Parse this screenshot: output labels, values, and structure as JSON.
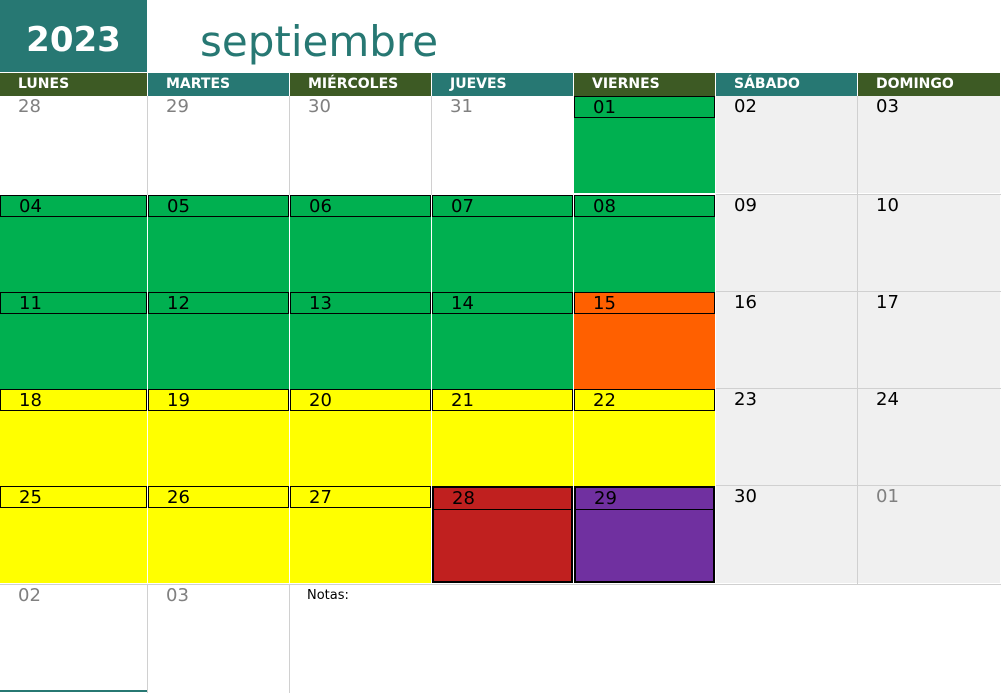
{
  "header": {
    "year": "2023",
    "month": "septiembre"
  },
  "colors": {
    "teal": "#277873",
    "olive": "#3d5a24",
    "green": "#00b050",
    "orange": "#ff6000",
    "yellow": "#ffff00",
    "red": "#c0201f",
    "purple": "#7030a0",
    "weekend": "#f0f0f0",
    "muted_text": "#808080"
  },
  "weekdays": [
    "LUNES",
    "MARTES",
    "MIÉRCOLES",
    "JUEVES",
    "VIERNES",
    "SÁBADO",
    "DOMINGO"
  ],
  "weeks": [
    [
      {
        "day": "28",
        "fill": "none",
        "muted": true
      },
      {
        "day": "29",
        "fill": "none",
        "muted": true
      },
      {
        "day": "30",
        "fill": "none",
        "muted": true
      },
      {
        "day": "31",
        "fill": "none",
        "muted": true
      },
      {
        "day": "01",
        "fill": "green",
        "muted": false
      },
      {
        "day": "02",
        "fill": "weekend",
        "muted": false
      },
      {
        "day": "03",
        "fill": "weekend",
        "muted": false
      }
    ],
    [
      {
        "day": "04",
        "fill": "green",
        "muted": false
      },
      {
        "day": "05",
        "fill": "green",
        "muted": false
      },
      {
        "day": "06",
        "fill": "green",
        "muted": false
      },
      {
        "day": "07",
        "fill": "green",
        "muted": false
      },
      {
        "day": "08",
        "fill": "green",
        "muted": false
      },
      {
        "day": "09",
        "fill": "weekend",
        "muted": false
      },
      {
        "day": "10",
        "fill": "weekend",
        "muted": false
      }
    ],
    [
      {
        "day": "11",
        "fill": "green",
        "muted": false
      },
      {
        "day": "12",
        "fill": "green",
        "muted": false
      },
      {
        "day": "13",
        "fill": "green",
        "muted": false
      },
      {
        "day": "14",
        "fill": "green",
        "muted": false
      },
      {
        "day": "15",
        "fill": "orange",
        "muted": false
      },
      {
        "day": "16",
        "fill": "weekend",
        "muted": false
      },
      {
        "day": "17",
        "fill": "weekend",
        "muted": false
      }
    ],
    [
      {
        "day": "18",
        "fill": "yellow",
        "muted": false
      },
      {
        "day": "19",
        "fill": "yellow",
        "muted": false
      },
      {
        "day": "20",
        "fill": "yellow",
        "muted": false
      },
      {
        "day": "21",
        "fill": "yellow",
        "muted": false
      },
      {
        "day": "22",
        "fill": "yellow",
        "muted": false
      },
      {
        "day": "23",
        "fill": "weekend",
        "muted": false
      },
      {
        "day": "24",
        "fill": "weekend",
        "muted": false
      }
    ],
    [
      {
        "day": "25",
        "fill": "yellow",
        "muted": false
      },
      {
        "day": "26",
        "fill": "yellow",
        "muted": false
      },
      {
        "day": "27",
        "fill": "yellow",
        "muted": false
      },
      {
        "day": "28",
        "fill": "red",
        "muted": false
      },
      {
        "day": "29",
        "fill": "purple",
        "muted": false
      },
      {
        "day": "30",
        "fill": "weekend",
        "muted": false
      },
      {
        "day": "01",
        "fill": "weekend",
        "muted": true
      }
    ],
    [
      {
        "day": "02",
        "fill": "none",
        "muted": true
      },
      {
        "day": "03",
        "fill": "none",
        "muted": true
      }
    ]
  ],
  "notes_label": "Notas:"
}
